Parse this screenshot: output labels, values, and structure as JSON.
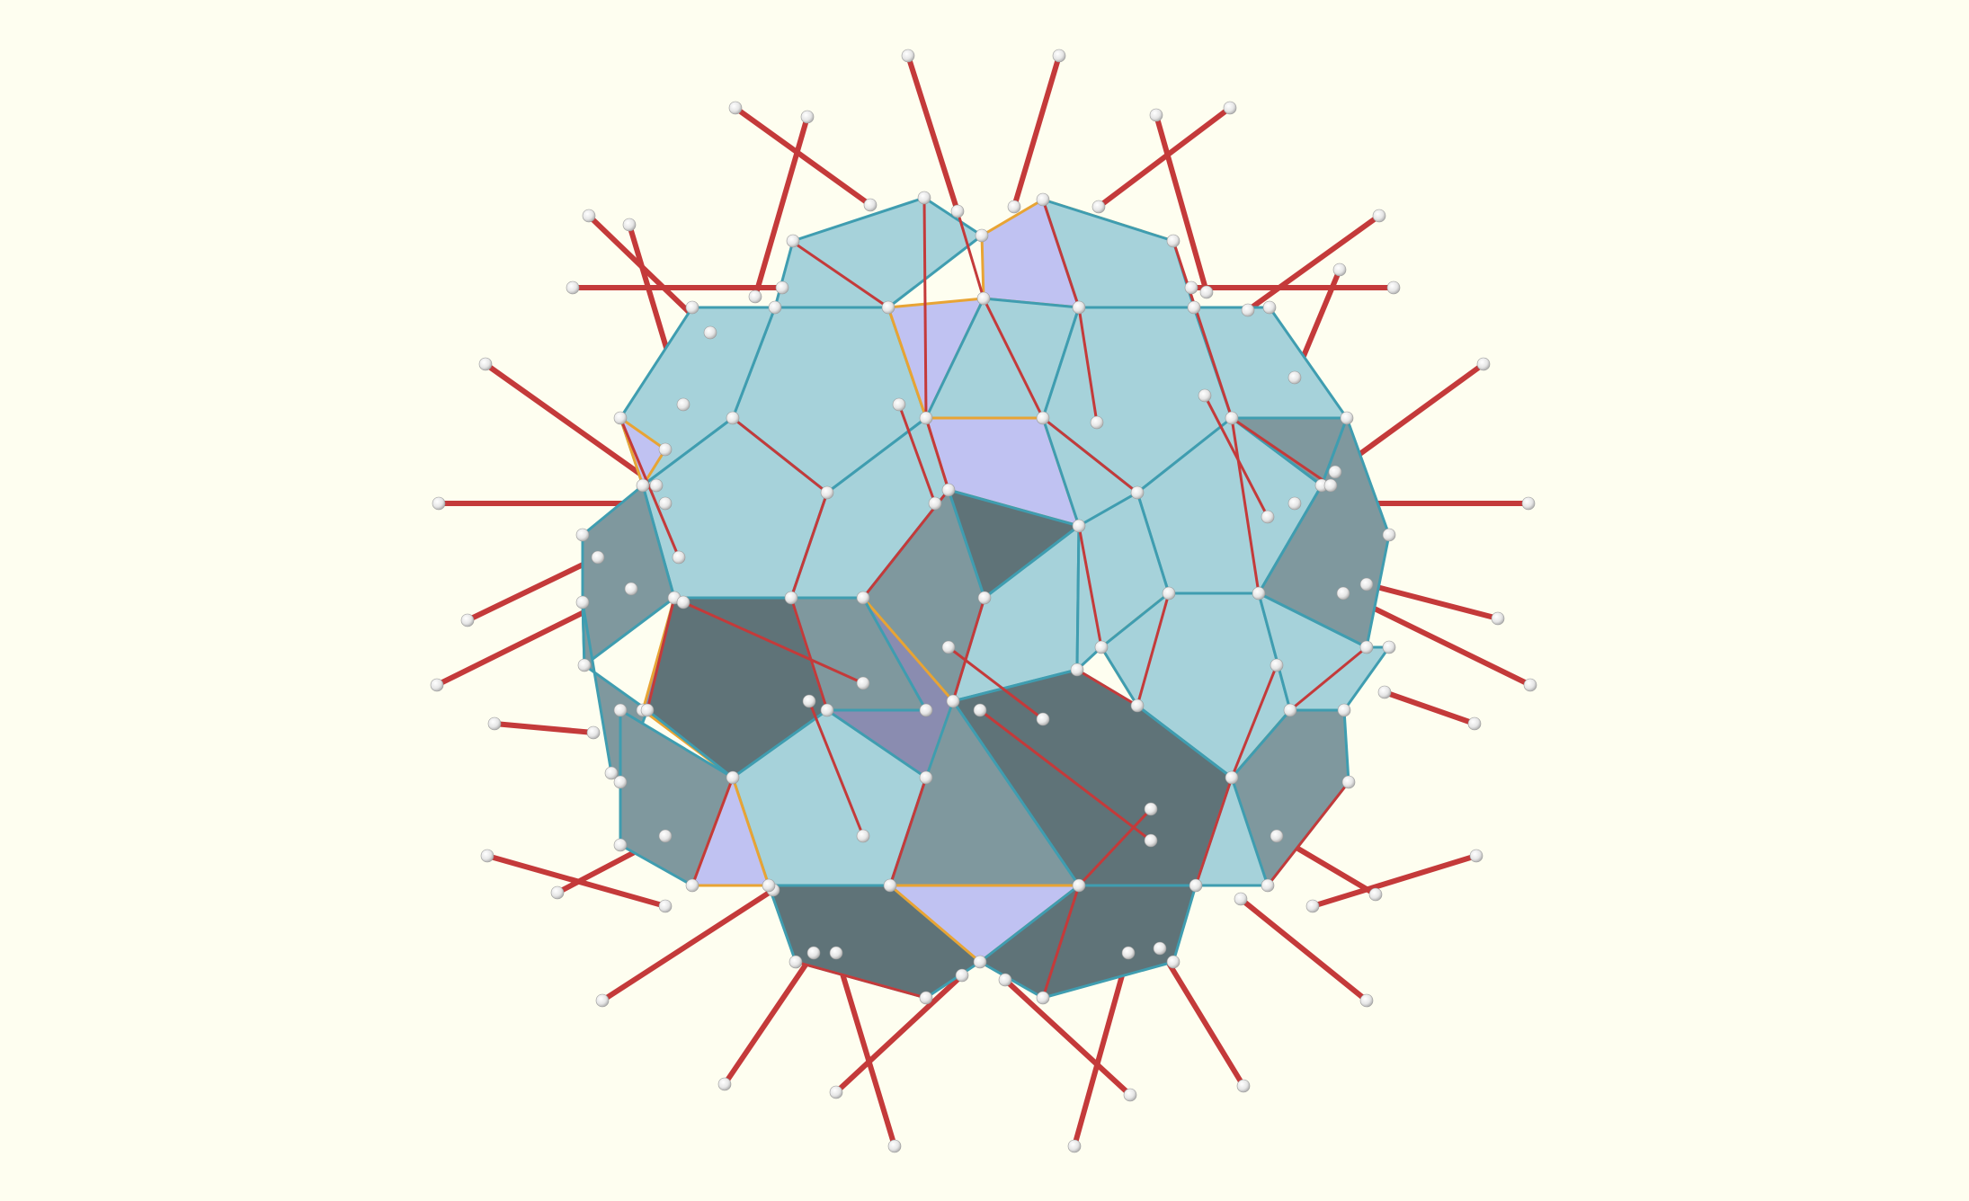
{
  "scene": {
    "background": "#fefef0",
    "colors": {
      "face_light": "#a6d2da",
      "face_lavender": "#c0c2f2",
      "face_shadow": "#5f7378",
      "edge_blue": "#3f9db0",
      "edge_orange": "#e8a434",
      "rod_red": "#c43a3a",
      "ball_white": "#f4f4f4"
    },
    "shapes": {
      "faces": "cyan-and-lavender-polygon-faces",
      "edges": "blue-and-orange-polyhedron-edges",
      "rods": "red-rods",
      "nodes": "white-ball-joints"
    }
  }
}
